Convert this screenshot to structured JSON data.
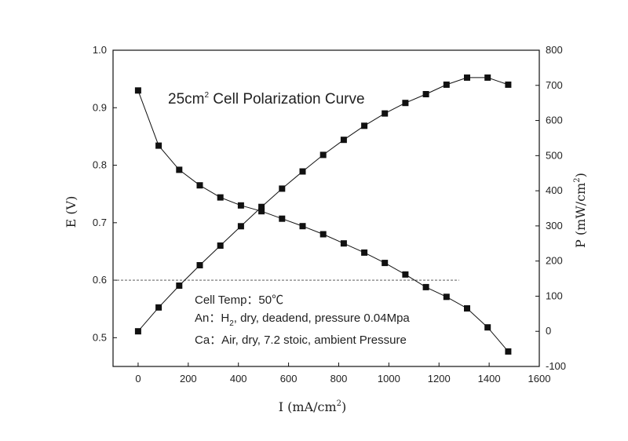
{
  "chart_data": {
    "type": "line",
    "title": {
      "pre": "25cm",
      "sup": "2",
      "post": " Cell Polarization Curve"
    },
    "xlabel": {
      "pre": "I (mA/cm",
      "sup": "2",
      "post": ")"
    },
    "ylabel_left": "E (V)",
    "ylabel_right": {
      "pre": "P (mW/cm",
      "sup": "2",
      "post": ")"
    },
    "xlim": [
      -100,
      1600
    ],
    "ylim_left": [
      0.45,
      1.0
    ],
    "ylim_right": [
      -100,
      800
    ],
    "x_ticks": [
      "0",
      "200",
      "400",
      "600",
      "800",
      "1000",
      "1200",
      "1400",
      "1600"
    ],
    "y_ticks_left": [
      "0.5",
      "0.6",
      "0.7",
      "0.8",
      "0.9",
      "1.0"
    ],
    "y_ticks_right": [
      "-100",
      "0",
      "100",
      "200",
      "300",
      "400",
      "500",
      "600",
      "700",
      "800"
    ],
    "reference_line": {
      "y": 0.6,
      "x_from": -100,
      "x_to": 1280
    },
    "series": [
      {
        "axis": "left",
        "x": [
          0,
          82,
          164,
          246,
          328,
          410,
          492,
          574,
          656,
          738,
          820,
          902,
          984,
          1066,
          1148,
          1230,
          1312,
          1394,
          1476
        ],
        "y": [
          0.93,
          0.834,
          0.792,
          0.765,
          0.744,
          0.73,
          0.72,
          0.707,
          0.694,
          0.68,
          0.664,
          0.648,
          0.63,
          0.61,
          0.588,
          0.571,
          0.551,
          0.518,
          0.476
        ]
      },
      {
        "axis": "right",
        "x": [
          0,
          82,
          164,
          246,
          328,
          410,
          492,
          574,
          656,
          738,
          820,
          902,
          984,
          1066,
          1148,
          1230,
          1312,
          1394,
          1476
        ],
        "y": [
          0,
          68,
          130,
          188,
          244,
          299,
          354,
          406,
          455,
          502,
          545,
          585,
          620,
          650,
          675,
          702,
          722,
          722,
          702
        ]
      }
    ],
    "annotations": [
      {
        "pre": "Cell Temp：50℃",
        "sup": "",
        "post": ""
      },
      {
        "pre": "An：H",
        "sub": "2",
        "post": ", dry, deadend, pressure 0.04Mpa"
      },
      {
        "pre": "Ca：Air, dry, 7.2 stoic, ambient Pressure",
        "sub": "",
        "post": ""
      }
    ],
    "grid": false,
    "marker": "square",
    "line_color": "#111111"
  }
}
